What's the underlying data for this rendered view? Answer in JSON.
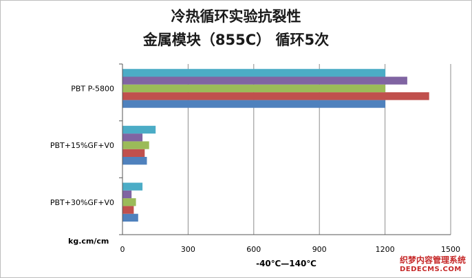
{
  "chart_data": {
    "type": "bar",
    "orientation": "horizontal",
    "title": [
      "冷热循环实验抗裂性",
      "金属模块（855C） 循环5次"
    ],
    "xlabel": "-40℃—140℃",
    "ylabel": "kg.cm/cm",
    "xlim": [
      0,
      1500
    ],
    "x_ticks": [
      "0",
      "300",
      "600",
      "900",
      "1200",
      "1500"
    ],
    "grid": "vertical",
    "legend": "none",
    "categories": [
      "PBT P-5800",
      "PBT+15%GF+V0",
      "PBT+30%GF+V0"
    ],
    "series": [
      {
        "color": "#4f81bd",
        "values": [
          1200,
          110,
          70
        ]
      },
      {
        "color": "#c0504d",
        "values": [
          1400,
          100,
          50
        ]
      },
      {
        "color": "#9bbb59",
        "values": [
          1200,
          120,
          60
        ]
      },
      {
        "color": "#8064a2",
        "values": [
          1300,
          90,
          40
        ]
      },
      {
        "color": "#4bacc6",
        "values": [
          1200,
          150,
          90
        ]
      }
    ]
  },
  "watermark": {
    "line1": "织梦内容管理系统",
    "line2": "DEDECMS.COM"
  }
}
